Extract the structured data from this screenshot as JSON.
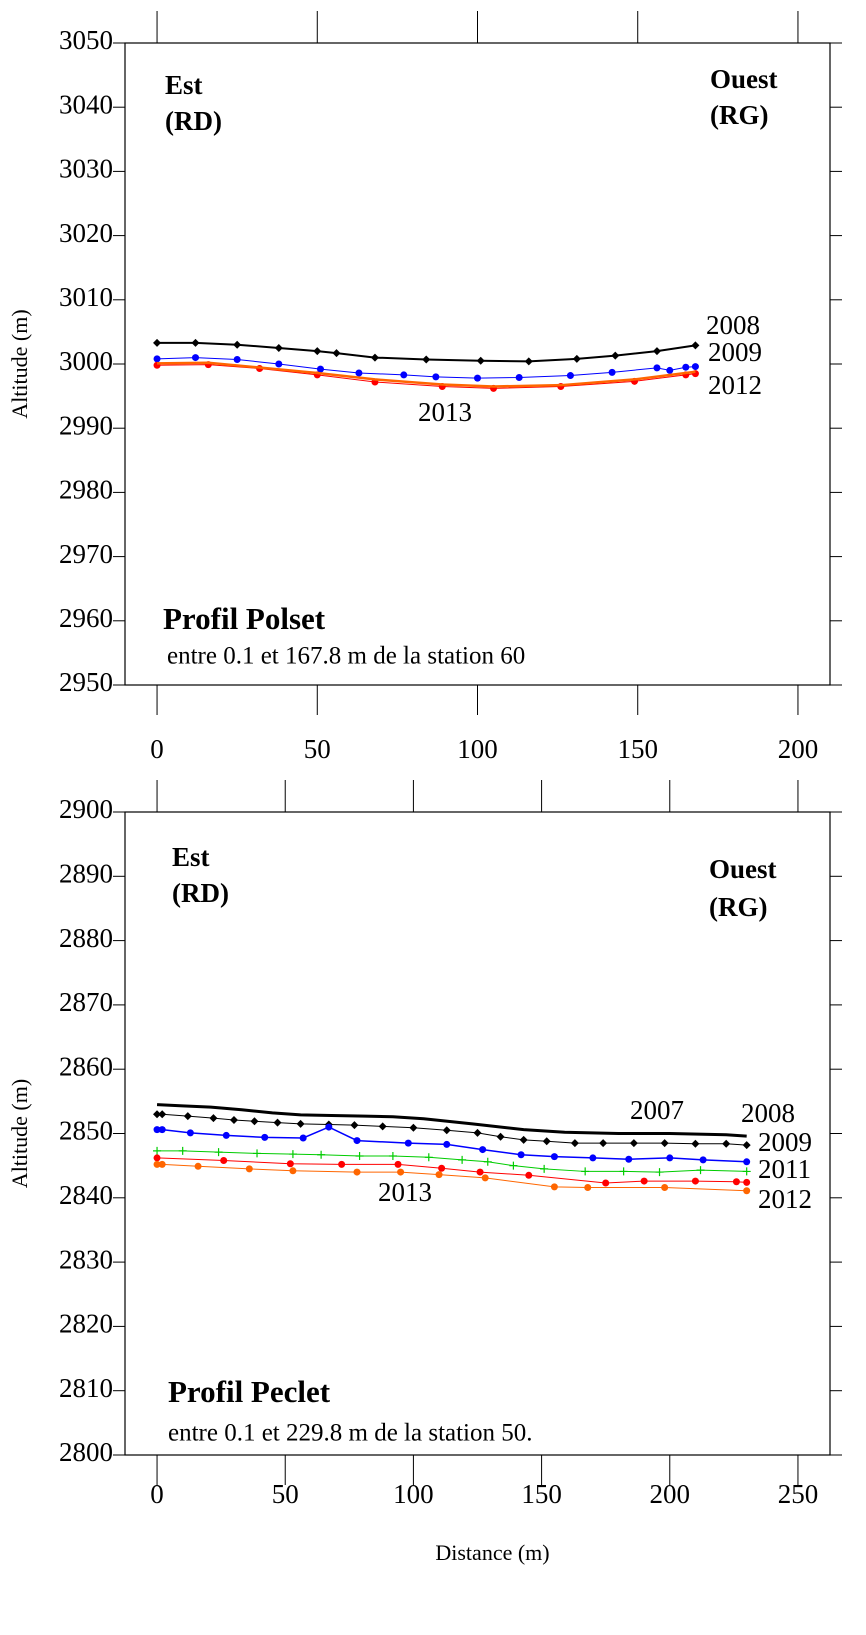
{
  "chart_data": [
    {
      "type": "line",
      "title": "Profil Polset",
      "subtitle": "entre 0.1 et 167.8 m de la station 60",
      "y_label": "Altitude (m)",
      "annotations": {
        "left": [
          "Est",
          "(RD)"
        ],
        "right": [
          "Ouest",
          "(RG)"
        ]
      },
      "xlim": [
        -10,
        210
      ],
      "xticks": [
        0,
        50,
        100,
        150,
        200
      ],
      "ylim": [
        2950,
        3050
      ],
      "yticks": [
        2950,
        2960,
        2970,
        2980,
        2990,
        3000,
        3010,
        3020,
        3030,
        3040,
        3050
      ],
      "series": [
        {
          "name": "2008",
          "color": "#000000",
          "marker": "diamond",
          "line_width": 2,
          "x": [
            0,
            12,
            25,
            38,
            50,
            56,
            68,
            84,
            101,
            116,
            131,
            143,
            156,
            168
          ],
          "values": [
            3003.3,
            3003.3,
            3003,
            3002.5,
            3002,
            3001.7,
            3001,
            3000.7,
            3000.5,
            3000.4,
            3000.8,
            3001.3,
            3002,
            3002.9
          ]
        },
        {
          "name": "2009",
          "color": "#0000ff",
          "marker": "circle",
          "line_width": 1,
          "x": [
            0,
            12,
            25,
            38,
            51,
            63,
            77,
            87,
            100,
            113,
            129,
            142,
            156,
            160,
            165,
            168
          ],
          "values": [
            3000.8,
            3001,
            3000.7,
            3000,
            2999.2,
            2998.6,
            2998.3,
            2998,
            2997.8,
            2997.9,
            2998.2,
            2998.7,
            2999.4,
            2999,
            2999.5,
            2999.6
          ]
        },
        {
          "name": "2012",
          "color": "#ff0000",
          "marker": "circle",
          "line_width": 1,
          "x": [
            0,
            16,
            32,
            50,
            68,
            89,
            105,
            126,
            149,
            165,
            168
          ],
          "values": [
            2999.8,
            2999.9,
            2999.3,
            2998.3,
            2997.2,
            2996.5,
            2996.2,
            2996.5,
            2997.3,
            2998.3,
            2998.5
          ]
        },
        {
          "name": "2013",
          "color": "#ff6600",
          "marker": "none",
          "line_width": 2.5,
          "x": [
            0,
            16,
            50,
            68,
            89,
            105,
            126,
            149,
            168
          ],
          "values": [
            3000.1,
            3000.2,
            2998.6,
            2997.6,
            2996.8,
            2996.5,
            2996.7,
            2997.6,
            2998.8
          ]
        }
      ]
    },
    {
      "type": "line",
      "title": "Profil Peclet",
      "subtitle": "entre 0.1 et 229.8 m de la station 50.",
      "x_label": "Distance (m)",
      "y_label": "Altitude (m)",
      "annotations": {
        "left": [
          "Est",
          "(RD)"
        ],
        "right": [
          "Ouest",
          "(RG)"
        ]
      },
      "xlim": [
        -12.5,
        262.5
      ],
      "xticks": [
        0,
        50,
        100,
        150,
        200,
        250
      ],
      "ylim": [
        2800,
        2900
      ],
      "yticks": [
        2800,
        2810,
        2820,
        2830,
        2840,
        2850,
        2860,
        2870,
        2880,
        2890,
        2900
      ],
      "series": [
        {
          "name": "2007",
          "color": "#000000",
          "marker": "none",
          "line_width": 3,
          "x": [
            0,
            10,
            21,
            33,
            45,
            56,
            68,
            81,
            92,
            104,
            123,
            143,
            159,
            180,
            200,
            222,
            230
          ],
          "values": [
            2854.5,
            2854.3,
            2854.1,
            2853.7,
            2853.2,
            2852.9,
            2852.8,
            2852.7,
            2852.6,
            2852.3,
            2851.5,
            2850.6,
            2850.2,
            2850,
            2850,
            2849.8,
            2849.6
          ]
        },
        {
          "name": "2008",
          "color": "#000000",
          "marker": "diamond",
          "line_width": 1,
          "x": [
            0,
            2,
            12,
            22,
            30,
            38,
            47,
            56,
            67,
            77,
            88,
            100,
            113,
            125,
            134,
            143,
            152,
            163,
            174,
            186,
            198,
            210,
            222,
            230
          ],
          "values": [
            2853,
            2853,
            2852.7,
            2852.4,
            2852.1,
            2851.9,
            2851.7,
            2851.5,
            2851.4,
            2851.3,
            2851.1,
            2850.9,
            2850.5,
            2850.1,
            2849.5,
            2849,
            2848.8,
            2848.5,
            2848.5,
            2848.5,
            2848.5,
            2848.4,
            2848.4,
            2848.2
          ]
        },
        {
          "name": "2009",
          "color": "#0000ff",
          "marker": "circle",
          "line_width": 1.5,
          "x": [
            0,
            2,
            13,
            27,
            42,
            57,
            67,
            78,
            98,
            113,
            127,
            142,
            155,
            170,
            184,
            200,
            213,
            230
          ],
          "values": [
            2850.6,
            2850.6,
            2850.1,
            2849.7,
            2849.4,
            2849.3,
            2851,
            2848.9,
            2848.5,
            2848.3,
            2847.5,
            2846.7,
            2846.4,
            2846.2,
            2846,
            2846.2,
            2845.9,
            2845.6
          ]
        },
        {
          "name": "2011",
          "color": "#00cc00",
          "marker": "plus",
          "line_width": 1,
          "x": [
            0,
            10,
            24,
            39,
            53,
            64,
            79,
            92,
            106,
            119,
            129,
            139,
            151,
            167,
            182,
            196,
            212,
            230
          ],
          "values": [
            2847.3,
            2847.3,
            2847.1,
            2846.9,
            2846.8,
            2846.7,
            2846.5,
            2846.5,
            2846.3,
            2845.9,
            2845.6,
            2845,
            2844.5,
            2844.1,
            2844.1,
            2844,
            2844.3,
            2844.1
          ]
        },
        {
          "name": "2012",
          "color": "#ff0000",
          "marker": "circle",
          "line_width": 1,
          "x": [
            0,
            26,
            52,
            72,
            94,
            111,
            126,
            145,
            175,
            190,
            210,
            226,
            230
          ],
          "values": [
            2846.2,
            2845.8,
            2845.3,
            2845.2,
            2845.2,
            2844.6,
            2844,
            2843.5,
            2842.3,
            2842.6,
            2842.6,
            2842.5,
            2842.4
          ]
        },
        {
          "name": "2013",
          "color": "#ff6600",
          "marker": "circle",
          "line_width": 1,
          "x": [
            0,
            2,
            16,
            36,
            53,
            78,
            95,
            110,
            128,
            155,
            168,
            198,
            230
          ],
          "values": [
            2845.2,
            2845.2,
            2844.9,
            2844.5,
            2844.2,
            2844,
            2844,
            2843.6,
            2843.1,
            2841.7,
            2841.6,
            2841.6,
            2841.1
          ]
        }
      ]
    }
  ]
}
